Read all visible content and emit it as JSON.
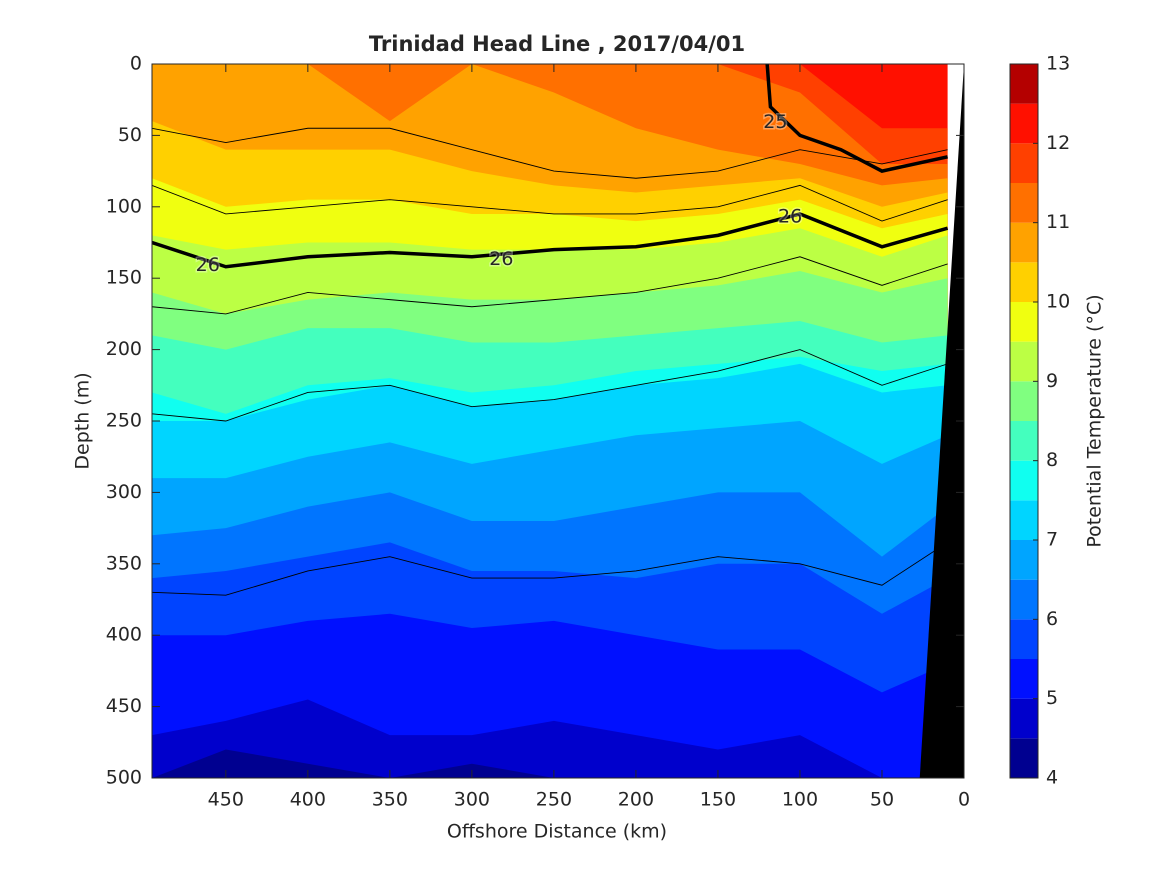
{
  "chart_data": {
    "type": "contour",
    "title": "Trinidad Head Line , 2017/04/01",
    "xlabel": "Offshore Distance (km)",
    "ylabel": "Depth (m)",
    "colorbar_label": "Potential Temperature (°C)",
    "xlim": [
      495,
      0
    ],
    "xticks": [
      450,
      400,
      350,
      300,
      250,
      200,
      150,
      100,
      50,
      0
    ],
    "ylim": [
      0,
      500
    ],
    "yticks": [
      0,
      50,
      100,
      150,
      200,
      250,
      300,
      350,
      400,
      450,
      500
    ],
    "clim": [
      4,
      13
    ],
    "cticks": [
      4,
      5,
      6,
      7,
      8,
      9,
      10,
      11,
      12,
      13
    ],
    "band_colors": [
      "#000090",
      "#0000cc",
      "#0010ff",
      "#0044ff",
      "#0075ff",
      "#00a5ff",
      "#00d5ff",
      "#10fff0",
      "#44ffbe",
      "#80ff80",
      "#bcff44",
      "#f0ff10",
      "#ffd000",
      "#ffa200",
      "#ff7000",
      "#ff4000",
      "#ff1000",
      "#b40000"
    ],
    "field_x": [
      495,
      450,
      400,
      350,
      300,
      250,
      200,
      150,
      100,
      50,
      10
    ],
    "isotherms": [
      {
        "level": 12.0,
        "depth": [
          0,
          0,
          0,
          0,
          0,
          0,
          0,
          0,
          0,
          45,
          45
        ]
      },
      {
        "level": 11.5,
        "depth": [
          0,
          0,
          0,
          0,
          0,
          0,
          0,
          0,
          20,
          70,
          70
        ]
      },
      {
        "level": 11.0,
        "depth": [
          0,
          0,
          0,
          40,
          0,
          20,
          45,
          60,
          70,
          85,
          80
        ]
      },
      {
        "level": 10.5,
        "depth": [
          40,
          60,
          60,
          60,
          75,
          85,
          90,
          85,
          80,
          100,
          90
        ]
      },
      {
        "level": 10.0,
        "depth": [
          80,
          100,
          95,
          95,
          105,
          105,
          110,
          105,
          95,
          115,
          105
        ]
      },
      {
        "level": 9.5,
        "depth": [
          120,
          130,
          125,
          125,
          130,
          130,
          130,
          125,
          115,
          135,
          120
        ]
      },
      {
        "level": 9.0,
        "depth": [
          160,
          175,
          165,
          160,
          165,
          165,
          160,
          155,
          145,
          160,
          150
        ]
      },
      {
        "level": 8.5,
        "depth": [
          190,
          200,
          185,
          185,
          195,
          195,
          190,
          185,
          180,
          195,
          190
        ]
      },
      {
        "level": 8.0,
        "depth": [
          230,
          245,
          225,
          220,
          230,
          225,
          215,
          210,
          205,
          215,
          210
        ]
      },
      {
        "level": 7.5,
        "depth": [
          250,
          250,
          235,
          225,
          240,
          235,
          225,
          220,
          210,
          230,
          225
        ]
      },
      {
        "level": 7.0,
        "depth": [
          290,
          290,
          275,
          265,
          280,
          270,
          260,
          255,
          250,
          280,
          260
        ]
      },
      {
        "level": 6.5,
        "depth": [
          330,
          325,
          310,
          300,
          320,
          320,
          310,
          300,
          300,
          345,
          310
        ]
      },
      {
        "level": 6.0,
        "depth": [
          360,
          355,
          345,
          335,
          355,
          355,
          360,
          350,
          350,
          385,
          360
        ]
      },
      {
        "level": 5.5,
        "depth": [
          400,
          400,
          390,
          385,
          395,
          390,
          400,
          410,
          410,
          440,
          420
        ]
      },
      {
        "level": 5.0,
        "depth": [
          470,
          460,
          445,
          470,
          470,
          460,
          470,
          480,
          470,
          500,
          500
        ]
      },
      {
        "level": 4.5,
        "depth": [
          500,
          480,
          490,
          500,
          490,
          500,
          500,
          500,
          500,
          500,
          500
        ]
      }
    ],
    "thin_contours": [
      [
        45,
        55,
        45,
        45,
        60,
        75,
        80,
        75,
        60,
        70,
        60
      ],
      [
        85,
        105,
        100,
        95,
        100,
        105,
        105,
        100,
        85,
        110,
        95
      ],
      [
        170,
        175,
        160,
        165,
        170,
        165,
        160,
        150,
        135,
        155,
        140
      ],
      [
        245,
        250,
        230,
        225,
        240,
        235,
        225,
        215,
        200,
        225,
        210
      ],
      [
        370,
        372,
        355,
        345,
        360,
        360,
        355,
        345,
        350,
        365,
        335
      ]
    ],
    "density_contours": [
      {
        "label": "25",
        "x": [
          120,
          118,
          100,
          75,
          50,
          10
        ],
        "depth": [
          0,
          30,
          50,
          60,
          75,
          65
        ],
        "label_at": [
          [
            115,
            41
          ]
        ]
      },
      {
        "label": "26",
        "x": [
          495,
          450,
          400,
          350,
          300,
          250,
          200,
          150,
          100,
          50,
          10
        ],
        "depth": [
          125,
          142,
          135,
          132,
          135,
          130,
          128,
          120,
          105,
          128,
          115
        ],
        "label_at": [
          [
            461,
            141
          ],
          [
            282,
            137
          ],
          [
            106,
            107
          ]
        ]
      }
    ],
    "bathymetry": {
      "x": [
        0,
        27,
        0
      ],
      "depth": [
        0,
        500,
        500
      ]
    }
  }
}
